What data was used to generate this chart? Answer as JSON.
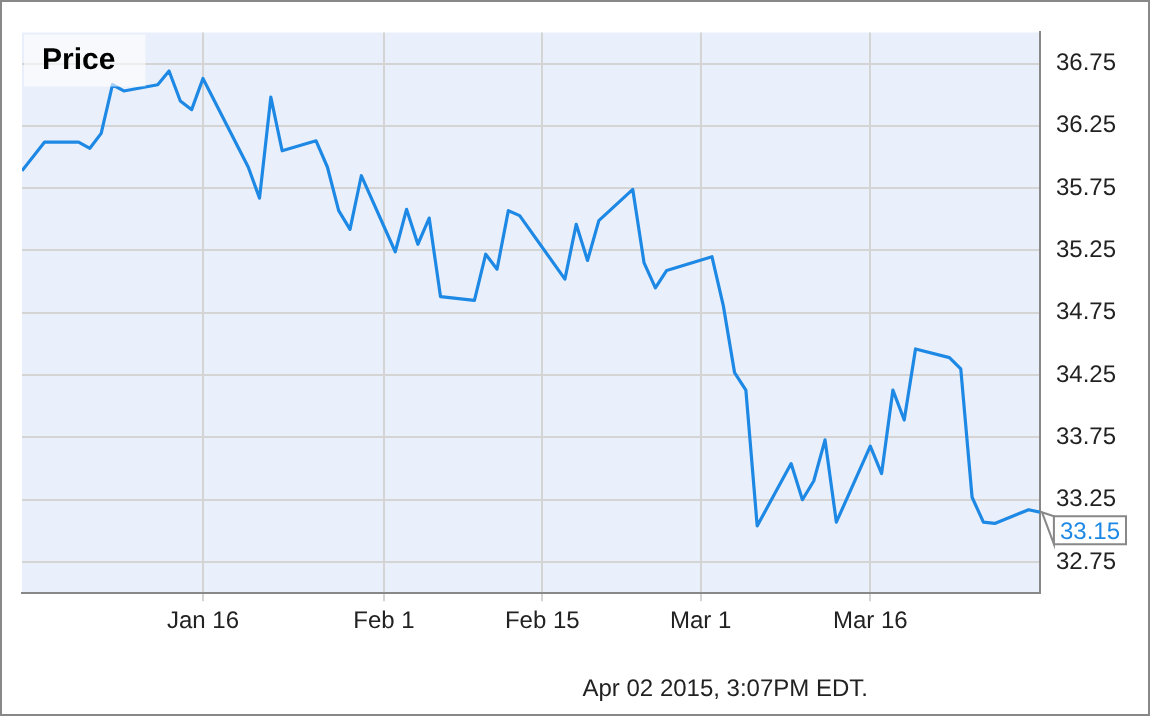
{
  "chart_data": {
    "type": "line",
    "title": "Price",
    "x": [
      "2014-12-31",
      "2015-01-02",
      "2015-01-05",
      "2015-01-06",
      "2015-01-07",
      "2015-01-08",
      "2015-01-09",
      "2015-01-12",
      "2015-01-13",
      "2015-01-14",
      "2015-01-15",
      "2015-01-16",
      "2015-01-20",
      "2015-01-21",
      "2015-01-22",
      "2015-01-23",
      "2015-01-26",
      "2015-01-27",
      "2015-01-28",
      "2015-01-29",
      "2015-01-30",
      "2015-02-02",
      "2015-02-03",
      "2015-02-04",
      "2015-02-05",
      "2015-02-06",
      "2015-02-09",
      "2015-02-10",
      "2015-02-11",
      "2015-02-12",
      "2015-02-13",
      "2015-02-17",
      "2015-02-18",
      "2015-02-19",
      "2015-02-20",
      "2015-02-23",
      "2015-02-24",
      "2015-02-25",
      "2015-02-26",
      "2015-03-02",
      "2015-03-03",
      "2015-03-04",
      "2015-03-05",
      "2015-03-06",
      "2015-03-09",
      "2015-03-10",
      "2015-03-11",
      "2015-03-12",
      "2015-03-13",
      "2015-03-16",
      "2015-03-17",
      "2015-03-18",
      "2015-03-19",
      "2015-03-20",
      "2015-03-23",
      "2015-03-24",
      "2015-03-25",
      "2015-03-26",
      "2015-03-27",
      "2015-03-30",
      "2015-03-31"
    ],
    "series": [
      {
        "color": "#1e88e5",
        "values": [
          35.89,
          36.12,
          36.12,
          36.07,
          36.19,
          36.58,
          36.53,
          36.58,
          36.69,
          36.45,
          36.38,
          36.63,
          35.92,
          35.67,
          36.48,
          36.05,
          36.13,
          35.92,
          35.57,
          35.42,
          35.85,
          35.24,
          35.58,
          35.3,
          35.51,
          34.88,
          34.85,
          35.22,
          35.1,
          35.57,
          35.53,
          35.02,
          35.46,
          35.17,
          35.49,
          35.74,
          35.15,
          34.95,
          35.09,
          35.2,
          34.81,
          34.27,
          34.13,
          33.04,
          33.54,
          33.25,
          33.4,
          33.73,
          33.07,
          33.68,
          33.46,
          34.13,
          33.89,
          34.46,
          34.39,
          34.3,
          33.27,
          33.07,
          33.06,
          33.17,
          33.15
        ]
      }
    ],
    "xlim": [
      "2014-12-31",
      "2015-03-31"
    ],
    "xticks": [
      {
        "value": "2015-01-16",
        "label": "Jan 16"
      },
      {
        "value": "2015-02-01",
        "label": "Feb 1"
      },
      {
        "value": "2015-02-15",
        "label": "Feb 15"
      },
      {
        "value": "2015-03-01",
        "label": "Mar 1"
      },
      {
        "value": "2015-03-16",
        "label": "Mar 16"
      }
    ],
    "ylim": [
      32.5,
      37.0
    ],
    "yticks": [
      32.75,
      33.25,
      33.75,
      34.25,
      34.75,
      35.25,
      35.75,
      36.25,
      36.75
    ],
    "annotations": [
      {
        "text": "33.15",
        "x": "2015-03-31",
        "y": 33.15
      },
      "Apr 02 2015, 3:07PM EDT."
    ],
    "grid": true,
    "marker": "none",
    "line_style": "solid"
  }
}
